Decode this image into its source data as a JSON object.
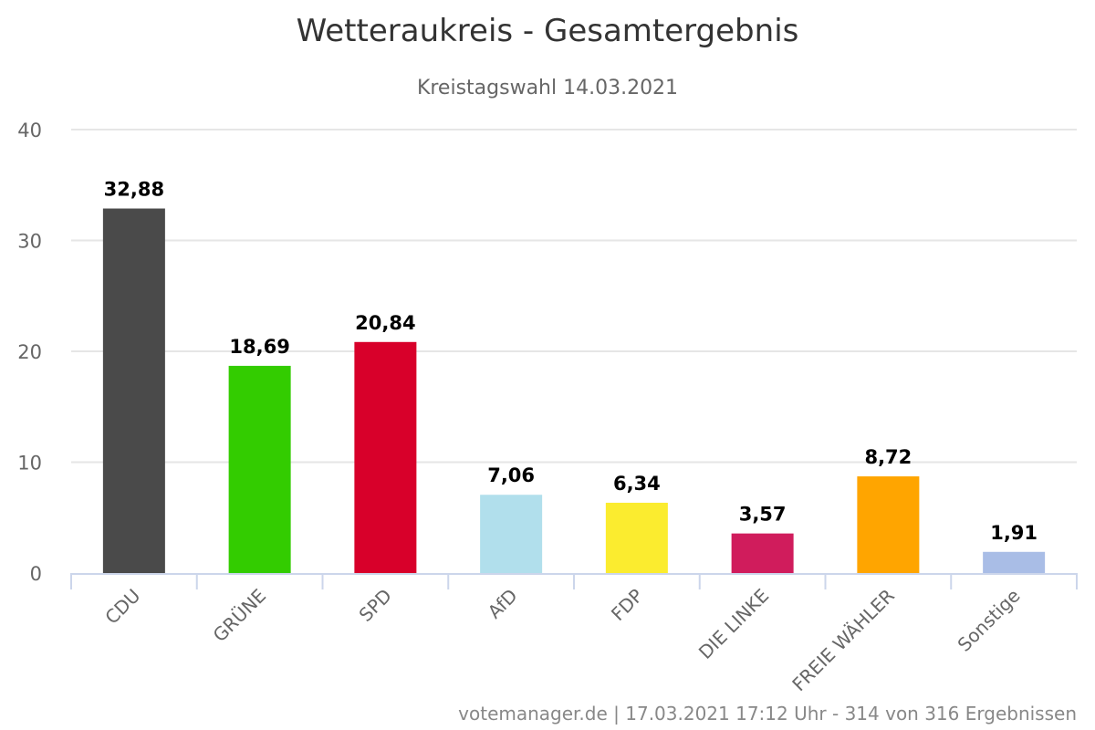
{
  "chart_data": {
    "type": "bar",
    "title": "Wetteraukreis - Gesamtergebnis",
    "subtitle": "Kreistagswahl 14.03.2021",
    "xlabel": "",
    "ylabel": "",
    "ylim": [
      0,
      40
    ],
    "yticks": [
      0,
      10,
      20,
      30,
      40
    ],
    "grid": true,
    "categories": [
      "CDU",
      "GRÜNE",
      "SPD",
      "AfD",
      "FDP",
      "DIE LINKE",
      "FREIE WÄHLER",
      "Sonstige"
    ],
    "values": [
      32.88,
      18.69,
      20.84,
      7.06,
      6.34,
      3.57,
      8.72,
      1.91
    ],
    "value_labels": [
      "32,88",
      "18,69",
      "20,84",
      "7,06",
      "6,34",
      "3,57",
      "8,72",
      "1,91"
    ],
    "colors": [
      "#4a4a4a",
      "#33cc00",
      "#d8002a",
      "#b1dfec",
      "#fbec2f",
      "#d01c5c",
      "#ffa500",
      "#a9bde6"
    ]
  },
  "credits": "votemanager.de | 17.03.2021 17:12 Uhr - 314 von 316 Ergebnissen"
}
